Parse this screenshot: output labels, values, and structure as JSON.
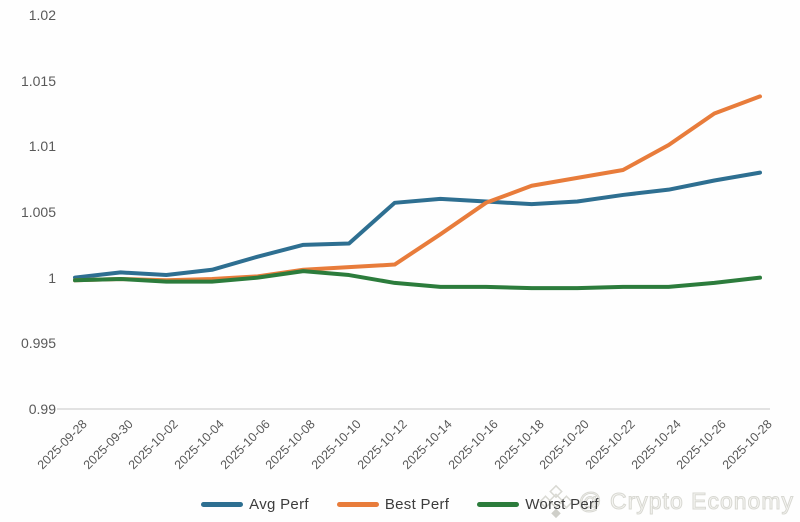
{
  "watermark": {
    "icon": "binance-diamond-icon",
    "text": "@ Crypto Economy"
  },
  "chart_data": {
    "type": "line",
    "title": "",
    "xlabel": "",
    "ylabel": "",
    "grid": false,
    "legend_position": "bottom",
    "ylim": [
      0.99,
      1.02
    ],
    "yticks": [
      "1.02",
      "1.015",
      "1.01",
      "1.005",
      "1",
      "0.995",
      "0.99"
    ],
    "axis_line_color": "#d9d9d9",
    "tick_label_color": "#595959",
    "categories": [
      "2025-09-28",
      "2025-09-30",
      "2025-10-02",
      "2025-10-04",
      "2025-10-06",
      "2025-10-08",
      "2025-10-10",
      "2025-10-12",
      "2025-10-14",
      "2025-10-16",
      "2025-10-18",
      "2025-10-20",
      "2025-10-22",
      "2025-10-24",
      "2025-10-26",
      "2025-10-28"
    ],
    "series": [
      {
        "name": "Avg Perf",
        "color": "#2e6f91",
        "values": [
          1.0,
          1.0004,
          1.0002,
          1.0006,
          1.0016,
          1.0025,
          1.0026,
          1.0057,
          1.006,
          1.0058,
          1.0056,
          1.0058,
          1.0063,
          1.0067,
          1.0074,
          1.008
        ]
      },
      {
        "name": "Best Perf",
        "color": "#e87c3b",
        "values": [
          0.9998,
          0.9999,
          0.9998,
          0.9999,
          1.0001,
          1.0006,
          1.0008,
          1.001,
          1.0033,
          1.0057,
          1.007,
          1.0076,
          1.0082,
          1.0101,
          1.0125,
          1.0138
        ]
      },
      {
        "name": "Worst Perf",
        "color": "#2c7c3c",
        "values": [
          0.9998,
          0.9999,
          0.9997,
          0.9997,
          1.0,
          1.0005,
          1.0002,
          0.9996,
          0.9993,
          0.9993,
          0.9992,
          0.9992,
          0.9993,
          0.9993,
          0.9996,
          1.0
        ]
      }
    ]
  }
}
